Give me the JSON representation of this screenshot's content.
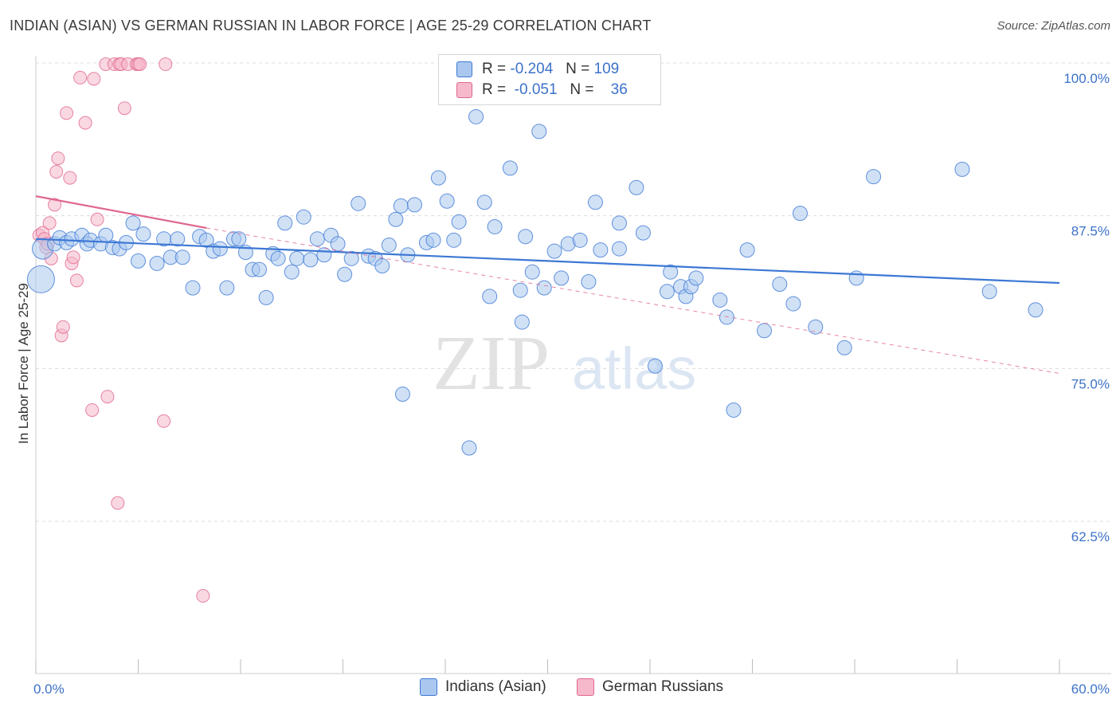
{
  "title": "INDIAN (ASIAN) VS GERMAN RUSSIAN IN LABOR FORCE | AGE 25-29 CORRELATION CHART",
  "source": "Source: ZipAtlas.com",
  "watermark": {
    "zip": "ZIP",
    "atlas": "atlas"
  },
  "legend": {
    "rows": [
      {
        "r_label": "R =",
        "r_value": "-0.204",
        "n_label": "N =",
        "n_value": "109",
        "color": "#aac8ef"
      },
      {
        "r_label": "R =",
        "r_value": "-0.051",
        "n_label": "N =",
        "n_value": "36",
        "color": "#f6b8cb"
      }
    ]
  },
  "bottom_legend": [
    {
      "label": "Indians (Asian)",
      "color": "#aac8ef"
    },
    {
      "label": "German Russians",
      "color": "#f6b8cb"
    }
  ],
  "colors": {
    "blue": "#3d78d4",
    "blue_fill": "#aac8ef",
    "pink": "#e0678f",
    "pink_fill": "#f6b8cb",
    "tick_label": "#3d72c8"
  },
  "chart_data": {
    "type": "scatter",
    "title": "INDIAN (ASIAN) VS GERMAN RUSSIAN IN LABOR FORCE | AGE 25-29 CORRELATION CHART",
    "xlabel": "",
    "ylabel": "In Labor Force | Age 25-29",
    "xlim": [
      0,
      60
    ],
    "ylim": [
      51.5,
      102
    ],
    "x_tick_labels": [
      "0.0%",
      "60.0%"
    ],
    "y_ticks": [
      62.5,
      75.0,
      87.5,
      100.0
    ],
    "y_tick_labels": [
      "62.5%",
      "75.0%",
      "87.5%",
      "100.0%"
    ],
    "grid": true,
    "legend_position": "top-center",
    "series": [
      {
        "name": "Indians (Asian)",
        "color": "#aac8ef",
        "stroke": "#3d78d4",
        "points": [
          [
            0.3,
            82.3
          ],
          [
            0.4,
            84.8
          ],
          [
            1.1,
            85.2
          ],
          [
            1.4,
            85.7
          ],
          [
            1.8,
            85.3
          ],
          [
            2.1,
            85.6
          ],
          [
            2.7,
            85.9
          ],
          [
            3.0,
            85.2
          ],
          [
            3.2,
            85.5
          ],
          [
            3.8,
            85.2
          ],
          [
            4.1,
            85.9
          ],
          [
            4.5,
            84.9
          ],
          [
            4.9,
            84.8
          ],
          [
            5.3,
            85.3
          ],
          [
            5.7,
            86.9
          ],
          [
            6.0,
            83.8
          ],
          [
            6.3,
            86.0
          ],
          [
            7.1,
            83.6
          ],
          [
            7.5,
            85.6
          ],
          [
            7.9,
            84.1
          ],
          [
            8.3,
            85.6
          ],
          [
            8.6,
            84.1
          ],
          [
            9.2,
            81.6
          ],
          [
            9.6,
            85.8
          ],
          [
            10.0,
            85.5
          ],
          [
            10.4,
            84.6
          ],
          [
            10.8,
            84.8
          ],
          [
            11.2,
            81.6
          ],
          [
            11.6,
            85.6
          ],
          [
            11.9,
            85.6
          ],
          [
            12.3,
            84.5
          ],
          [
            12.7,
            83.1
          ],
          [
            13.1,
            83.1
          ],
          [
            13.5,
            80.8
          ],
          [
            13.9,
            84.4
          ],
          [
            14.2,
            84.0
          ],
          [
            14.6,
            86.9
          ],
          [
            15.0,
            82.9
          ],
          [
            15.3,
            84.0
          ],
          [
            15.7,
            87.4
          ],
          [
            16.1,
            83.9
          ],
          [
            16.5,
            85.6
          ],
          [
            16.9,
            84.3
          ],
          [
            17.3,
            85.9
          ],
          [
            17.7,
            85.2
          ],
          [
            18.1,
            82.7
          ],
          [
            18.5,
            84.0
          ],
          [
            18.9,
            88.5
          ],
          [
            19.5,
            84.2
          ],
          [
            19.9,
            84.0
          ],
          [
            20.3,
            83.4
          ],
          [
            20.7,
            85.1
          ],
          [
            21.1,
            87.2
          ],
          [
            21.4,
            88.3
          ],
          [
            21.8,
            84.3
          ],
          [
            22.2,
            88.4
          ],
          [
            22.9,
            85.3
          ],
          [
            23.3,
            85.5
          ],
          [
            23.6,
            90.6
          ],
          [
            24.1,
            88.7
          ],
          [
            24.5,
            85.5
          ],
          [
            24.8,
            87.0
          ],
          [
            25.4,
            68.5
          ],
          [
            25.8,
            95.6
          ],
          [
            26.3,
            88.6
          ],
          [
            26.6,
            80.9
          ],
          [
            26.9,
            86.6
          ],
          [
            27.8,
            91.4
          ],
          [
            28.4,
            81.4
          ],
          [
            28.5,
            78.8
          ],
          [
            28.7,
            85.8
          ],
          [
            29.1,
            82.9
          ],
          [
            29.5,
            94.4
          ],
          [
            29.8,
            81.6
          ],
          [
            30.4,
            84.6
          ],
          [
            30.8,
            82.4
          ],
          [
            31.2,
            85.2
          ],
          [
            31.9,
            85.5
          ],
          [
            32.4,
            82.1
          ],
          [
            32.8,
            88.6
          ],
          [
            33.1,
            84.7
          ],
          [
            34.2,
            84.8
          ],
          [
            34.2,
            86.9
          ],
          [
            35.2,
            89.8
          ],
          [
            35.6,
            86.1
          ],
          [
            36.3,
            75.2
          ],
          [
            37.0,
            81.3
          ],
          [
            37.2,
            82.9
          ],
          [
            37.8,
            81.7
          ],
          [
            38.1,
            80.9
          ],
          [
            38.4,
            81.7
          ],
          [
            38.7,
            82.4
          ],
          [
            40.1,
            80.6
          ],
          [
            40.5,
            79.2
          ],
          [
            40.9,
            71.6
          ],
          [
            41.7,
            84.7
          ],
          [
            42.7,
            78.1
          ],
          [
            43.6,
            81.9
          ],
          [
            44.4,
            80.3
          ],
          [
            44.8,
            87.7
          ],
          [
            45.7,
            78.4
          ],
          [
            47.4,
            76.7
          ],
          [
            48.1,
            82.4
          ],
          [
            49.1,
            90.7
          ],
          [
            54.3,
            91.3
          ],
          [
            55.9,
            81.3
          ],
          [
            58.6,
            79.8
          ],
          [
            21.5,
            72.9
          ]
        ],
        "trend": [
          [
            0,
            85.6
          ],
          [
            60,
            82.0
          ]
        ]
      },
      {
        "name": "German Russians",
        "color": "#f6b8cb",
        "stroke": "#e0678f",
        "points": [
          [
            0.2,
            85.9
          ],
          [
            0.4,
            86.1
          ],
          [
            0.5,
            85.6
          ],
          [
            0.6,
            84.9
          ],
          [
            0.7,
            85.2
          ],
          [
            0.8,
            86.9
          ],
          [
            0.9,
            84.0
          ],
          [
            1.1,
            88.4
          ],
          [
            1.2,
            91.1
          ],
          [
            1.3,
            92.2
          ],
          [
            1.5,
            77.7
          ],
          [
            1.6,
            78.4
          ],
          [
            1.8,
            95.9
          ],
          [
            2.0,
            90.6
          ],
          [
            2.1,
            83.6
          ],
          [
            2.2,
            84.1
          ],
          [
            2.4,
            82.2
          ],
          [
            2.6,
            98.8
          ],
          [
            2.9,
            95.1
          ],
          [
            3.3,
            71.6
          ],
          [
            3.4,
            98.7
          ],
          [
            3.6,
            87.2
          ],
          [
            4.1,
            99.9
          ],
          [
            4.2,
            72.7
          ],
          [
            4.6,
            99.9
          ],
          [
            4.8,
            64.0
          ],
          [
            4.9,
            99.9
          ],
          [
            5.0,
            99.9
          ],
          [
            5.2,
            96.3
          ],
          [
            5.4,
            99.9
          ],
          [
            5.9,
            99.9
          ],
          [
            6.0,
            99.9
          ],
          [
            6.1,
            99.9
          ],
          [
            7.5,
            70.7
          ],
          [
            7.6,
            99.9
          ],
          [
            9.8,
            56.4
          ]
        ],
        "trend": [
          [
            0,
            89.1
          ],
          [
            10,
            86.5
          ]
        ],
        "trend_extension": [
          [
            10,
            86.5
          ],
          [
            60,
            74.6
          ]
        ]
      }
    ]
  }
}
